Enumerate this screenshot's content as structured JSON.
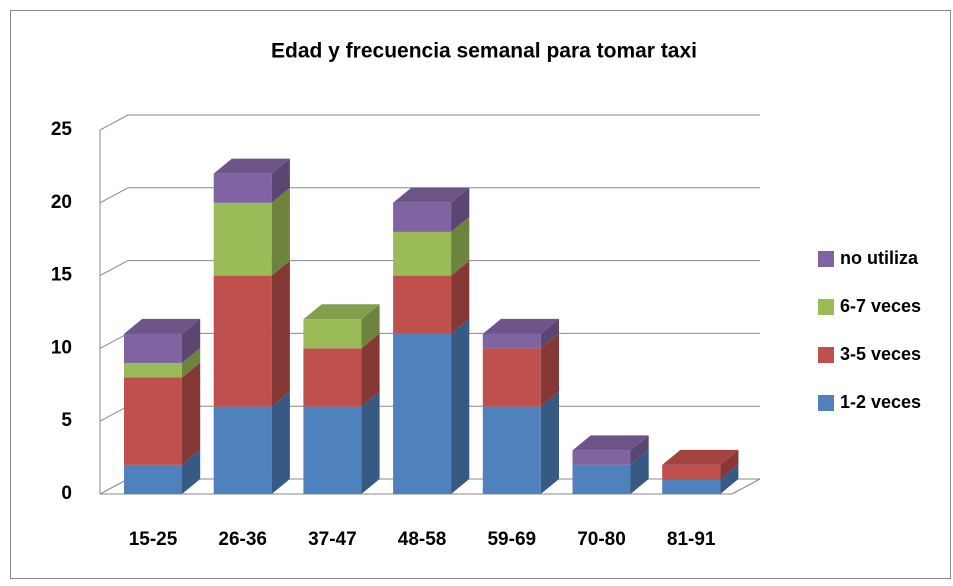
{
  "chart_data": {
    "type": "bar3d_stacked",
    "title": "Edad y frecuencia semanal para tomar taxi",
    "categories": [
      "15-25",
      "26-36",
      "37-47",
      "48-58",
      "59-69",
      "70-80",
      "81-91"
    ],
    "series": [
      {
        "name": "1-2 veces",
        "color": "#4f81bd",
        "values": [
          2,
          6,
          6,
          11,
          6,
          2,
          1
        ]
      },
      {
        "name": "3-5 veces",
        "color": "#c0504d",
        "values": [
          6,
          9,
          4,
          4,
          4,
          0,
          1
        ]
      },
      {
        "name": "6-7 veces",
        "color": "#9bbb59",
        "values": [
          1,
          5,
          2,
          3,
          0,
          0,
          0
        ]
      },
      {
        "name": "no utiliza",
        "color": "#8064a2",
        "values": [
          2,
          2,
          0,
          2,
          1,
          1,
          0
        ]
      }
    ],
    "ylim": [
      0,
      25
    ],
    "yticks": [
      0,
      5,
      10,
      15,
      20,
      25
    ],
    "grid": true,
    "legend": "right"
  }
}
